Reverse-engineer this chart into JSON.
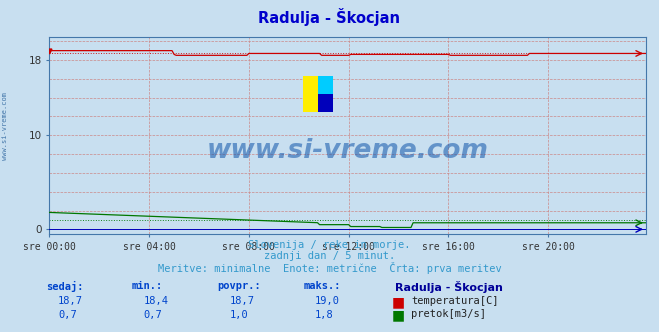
{
  "title": "Radulja - Škocjan",
  "title_color": "#0000cc",
  "background_color": "#c8dff0",
  "plot_bg_color": "#c8dff0",
  "border_color": "#4477aa",
  "grid_color": "#cc8888",
  "xticklabels": [
    "sre 00:00",
    "sre 04:00",
    "sre 08:00",
    "sre 12:00",
    "sre 16:00",
    "sre 20:00"
  ],
  "x_tick_positions": [
    0,
    48,
    96,
    144,
    192,
    240
  ],
  "ytick_labels": [
    "0",
    "10",
    "18"
  ],
  "ytick_positions": [
    0,
    10,
    18
  ],
  "ylim": [
    -0.5,
    20.5
  ],
  "xlim": [
    0,
    287
  ],
  "n_points": 288,
  "temp_start": 19.0,
  "temp_base": 18.7,
  "temp_min": 18.4,
  "temp_max": 19.0,
  "flow_start": 1.8,
  "flow_end": 0.7,
  "flow_drop_point": 130,
  "temp_color": "#cc0000",
  "flow_color": "#007700",
  "height_color": "#0000bb",
  "watermark": "www.si-vreme.com",
  "watermark_color": "#1155aa",
  "subtitle1": "Slovenija / reke in morje.",
  "subtitle2": "zadnji dan / 5 minut.",
  "subtitle3": "Meritve: minimalne  Enote: metrične  Črta: prva meritev",
  "subtitle_color": "#3399cc",
  "legend_title": "Radulja - Škocjan",
  "legend_title_color": "#000099",
  "legend_temp_label": "temperatura[C]",
  "legend_flow_label": "pretok[m3/s]",
  "table_headers": [
    "sedaj:",
    "min.:",
    "povpr.:",
    "maks.:"
  ],
  "table_temp_values": [
    "18,7",
    "18,4",
    "18,7",
    "19,0"
  ],
  "table_flow_values": [
    "0,7",
    "0,7",
    "1,0",
    "1,8"
  ],
  "table_color": "#0044cc",
  "sidebar_text": "www.si-vreme.com",
  "sidebar_color": "#4477aa",
  "icon_yellow": "#ffee00",
  "icon_cyan": "#00ccff",
  "icon_blue": "#0000bb"
}
